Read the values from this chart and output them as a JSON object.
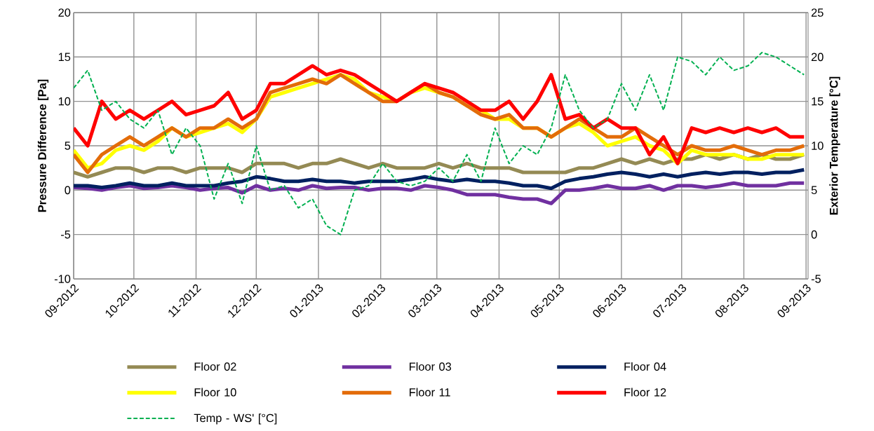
{
  "chart_data": {
    "type": "line",
    "ylabel": "Pressure Difference [Pa]",
    "y2label": "Exterior Temperature [°C]",
    "x": [
      "2012-09-01",
      "2012-09-08",
      "2012-09-15",
      "2012-09-22",
      "2012-09-29",
      "2012-10-06",
      "2012-10-13",
      "2012-10-20",
      "2012-10-27",
      "2012-11-03",
      "2012-11-10",
      "2012-11-17",
      "2012-11-24",
      "2012-12-01",
      "2012-12-08",
      "2012-12-15",
      "2012-12-22",
      "2012-12-29",
      "2013-01-05",
      "2013-01-12",
      "2013-01-19",
      "2013-01-26",
      "2013-02-02",
      "2013-02-09",
      "2013-02-16",
      "2013-02-23",
      "2013-03-02",
      "2013-03-09",
      "2013-03-16",
      "2013-03-23",
      "2013-03-30",
      "2013-04-06",
      "2013-04-13",
      "2013-04-20",
      "2013-04-27",
      "2013-05-04",
      "2013-05-11",
      "2013-05-18",
      "2013-05-25",
      "2013-06-01",
      "2013-06-08",
      "2013-06-15",
      "2013-06-22",
      "2013-06-29",
      "2013-07-06",
      "2013-07-13",
      "2013-07-20",
      "2013-07-27",
      "2013-08-03",
      "2013-08-10",
      "2013-08-17",
      "2013-08-24",
      "2013-08-31"
    ],
    "series": [
      {
        "name": "Floor 02",
        "color": "#948a54",
        "values": [
          2,
          1.5,
          2,
          2.5,
          2.5,
          2,
          2.5,
          2.5,
          2,
          2.5,
          2.5,
          2.5,
          2,
          3,
          3,
          3,
          2.5,
          3,
          3,
          3.5,
          3,
          2.5,
          3,
          2.5,
          2.5,
          2.5,
          3,
          2.5,
          3,
          2.5,
          2.5,
          2.5,
          2,
          2,
          2,
          2,
          2.5,
          2.5,
          3,
          3.5,
          3,
          3.5,
          3,
          3.5,
          3.5,
          4,
          3.5,
          4,
          3.5,
          4,
          3.5,
          3.5,
          4
        ]
      },
      {
        "name": "Floor 03",
        "color": "#7030a0",
        "values": [
          0.3,
          0.2,
          0,
          0.3,
          0.5,
          0.2,
          0.3,
          0.5,
          0.3,
          0,
          0.2,
          0.3,
          -0.3,
          0.5,
          0,
          0.2,
          0,
          0.5,
          0.2,
          0.3,
          0.3,
          0,
          0.2,
          0.2,
          0,
          0.5,
          0.3,
          0,
          -0.5,
          -0.5,
          -0.5,
          -0.8,
          -1,
          -1,
          -1.5,
          0,
          0,
          0.2,
          0.5,
          0.2,
          0.2,
          0.5,
          0,
          0.5,
          0.5,
          0.3,
          0.5,
          0.8,
          0.5,
          0.5,
          0.5,
          0.8,
          0.8
        ]
      },
      {
        "name": "Floor 04",
        "color": "#002060",
        "values": [
          0.5,
          0.5,
          0.3,
          0.5,
          0.8,
          0.5,
          0.5,
          0.8,
          0.5,
          0.5,
          0.5,
          0.8,
          1,
          1.5,
          1.3,
          1,
          1,
          1.2,
          1,
          1,
          0.8,
          1,
          1,
          1,
          1.2,
          1.5,
          1.2,
          1,
          1.2,
          1,
          1,
          0.8,
          0.5,
          0.5,
          0.2,
          1,
          1.3,
          1.5,
          1.8,
          2,
          1.8,
          1.5,
          1.8,
          1.5,
          1.8,
          2,
          1.8,
          2,
          2,
          1.8,
          2,
          2,
          2.3
        ]
      },
      {
        "name": "Floor 10",
        "color": "#ffff00",
        "values": [
          4.5,
          2.5,
          3,
          4.5,
          5,
          4.5,
          5.5,
          7,
          6,
          6.5,
          7,
          7.5,
          6.5,
          8,
          10.5,
          11,
          11.5,
          12,
          12.5,
          13,
          12.5,
          11,
          10.5,
          10,
          11,
          11.5,
          11,
          10.5,
          9.5,
          9,
          8,
          8,
          7,
          7,
          6,
          7,
          7.5,
          6.5,
          5,
          5.5,
          6,
          5,
          4.5,
          3,
          4.5,
          4,
          4,
          4,
          3.5,
          3.5,
          4,
          4,
          4
        ]
      },
      {
        "name": "Floor 11",
        "color": "#e36c09",
        "values": [
          4,
          2,
          4,
          5,
          6,
          5,
          6,
          7,
          6,
          7,
          7,
          8,
          7,
          8,
          11,
          11.5,
          12,
          12.5,
          12,
          13,
          12,
          11,
          10,
          10,
          11,
          12,
          11,
          10.5,
          9.5,
          8.5,
          8,
          8.5,
          7,
          7,
          6,
          7,
          8,
          7,
          6,
          6,
          7,
          6,
          5,
          4,
          5,
          4.5,
          4.5,
          5,
          4.5,
          4,
          4.5,
          4.5,
          5
        ]
      },
      {
        "name": "Floor 12",
        "color": "#ff0000",
        "values": [
          7,
          5,
          10,
          8,
          9,
          8,
          9,
          10,
          8.5,
          9,
          9.5,
          11,
          8,
          9,
          12,
          12,
          13,
          14,
          13,
          13.5,
          13,
          12,
          11,
          10,
          11,
          12,
          11.5,
          11,
          10,
          9,
          9,
          10,
          8,
          10,
          13,
          8,
          8.5,
          7,
          8,
          7,
          7,
          4,
          6,
          3,
          7,
          6.5,
          7,
          6.5,
          7,
          6.5,
          7,
          6,
          6
        ]
      },
      {
        "name": "Temp - WS' [°C]",
        "color": "#00b050",
        "axis": "y2",
        "line_style": "dashed",
        "values": [
          16.5,
          18.5,
          14,
          15,
          13,
          12,
          14,
          9,
          12,
          10,
          4,
          8,
          3.5,
          10,
          5,
          5.5,
          3,
          4,
          1,
          0,
          5,
          5.5,
          8,
          6,
          5.5,
          6,
          7.5,
          6,
          9,
          6,
          12,
          8,
          10,
          9,
          12,
          18,
          14,
          12,
          13,
          17,
          14,
          18,
          14,
          20,
          19.5,
          18,
          20,
          18.5,
          19,
          20.5,
          20,
          19,
          18
        ]
      }
    ],
    "xlim": [
      "2012-09-01",
      "2013-09-02"
    ],
    "xticks": [
      {
        "value": "2012-09-01",
        "label": "09-2012"
      },
      {
        "value": "2012-10-01",
        "label": "10-2012"
      },
      {
        "value": "2012-11-01",
        "label": "11-2012"
      },
      {
        "value": "2012-12-01",
        "label": "12-2012"
      },
      {
        "value": "2013-01-01",
        "label": "01-2013"
      },
      {
        "value": "2013-02-01",
        "label": "02-2013"
      },
      {
        "value": "2013-03-01",
        "label": "03-2013"
      },
      {
        "value": "2013-04-01",
        "label": "04-2013"
      },
      {
        "value": "2013-05-01",
        "label": "05-2013"
      },
      {
        "value": "2013-06-01",
        "label": "06-2013"
      },
      {
        "value": "2013-07-01",
        "label": "07-2013"
      },
      {
        "value": "2013-08-01",
        "label": "08-2013"
      },
      {
        "value": "2013-09-01",
        "label": "09-2013"
      }
    ],
    "ylim": [
      -10,
      20
    ],
    "yticks": [
      -10,
      -5,
      0,
      5,
      10,
      15,
      20
    ],
    "y2lim": [
      -5,
      25
    ],
    "y2ticks": [
      -5,
      0,
      5,
      10,
      15,
      20,
      25
    ],
    "grid": true,
    "legend": "bottom"
  }
}
